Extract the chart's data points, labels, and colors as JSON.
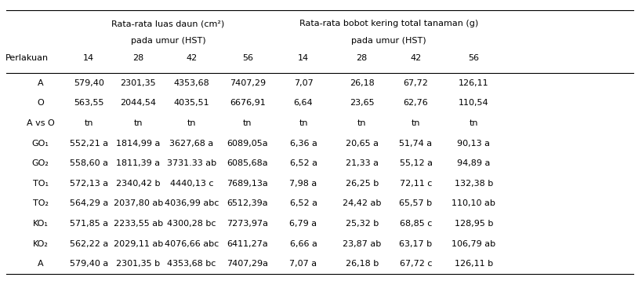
{
  "header1_luas": "Rata-rata luas daun (cm²)",
  "header1_bobot": "Rata-rata bobot kering total tanaman (g)",
  "header2_luas": "pada umur (HST)",
  "header2_bobot": "pada umur (HST)",
  "col_header": [
    "Perlakuan",
    "14",
    "28",
    "42",
    "56",
    "14",
    "28",
    "42",
    "56"
  ],
  "rows": [
    [
      "A",
      "579,40",
      "2301,35",
      "4353,68",
      "7407,29",
      "7,07",
      "26,18",
      "67,72",
      "126,11"
    ],
    [
      "O",
      "563,55",
      "2044,54",
      "4035,51",
      "6676,91",
      "6,64",
      "23,65",
      "62,76",
      "110,54"
    ],
    [
      "A vs O",
      "tn",
      "tn",
      "tn",
      "tn",
      "tn",
      "tn",
      "tn",
      "tn"
    ],
    [
      "GO₁",
      "552,21 a",
      "1814,99 a",
      "3627,68 a",
      "6089,05a",
      "6,36 a",
      "20,65 a",
      "51,74 a",
      "90,13 a"
    ],
    [
      "GO₂",
      "558,60 a",
      "1811,39 a",
      "3731.33 ab",
      "6085,68a",
      "6,52 a",
      "21,33 a",
      "55,12 a",
      "94,89 a"
    ],
    [
      "TO₁",
      "572,13 a",
      "2340,42 b",
      "4440,13 c",
      "7689,13a",
      "7,98 a",
      "26,25 b",
      "72,11 c",
      "132,38 b"
    ],
    [
      "TO₂",
      "564,29 a",
      "2037,80 ab",
      "4036,99 abc",
      "6512,39a",
      "6,52 a",
      "24,42 ab",
      "65,57 b",
      "110,10 ab"
    ],
    [
      "KO₁",
      "571,85 a",
      "2233,55 ab",
      "4300,28 bc",
      "7273,97a",
      "6,79 a",
      "25,32 b",
      "68,85 c",
      "128,95 b"
    ],
    [
      "KO₂",
      "562,22 a",
      "2029,11 ab",
      "4076,66 abc",
      "6411,27a",
      "6,66 a",
      "23,87 ab",
      "63,17 b",
      "106,79 ab"
    ],
    [
      "A",
      "579,40 a",
      "2301,35 b",
      "4353,68 bc",
      "7407,29a",
      "7,07 a",
      "26,18 b",
      "67,72 c",
      "126,11 b"
    ]
  ],
  "bg_color": "#ffffff",
  "font_size": 8.0,
  "line_color": "black",
  "line_width": 0.8
}
